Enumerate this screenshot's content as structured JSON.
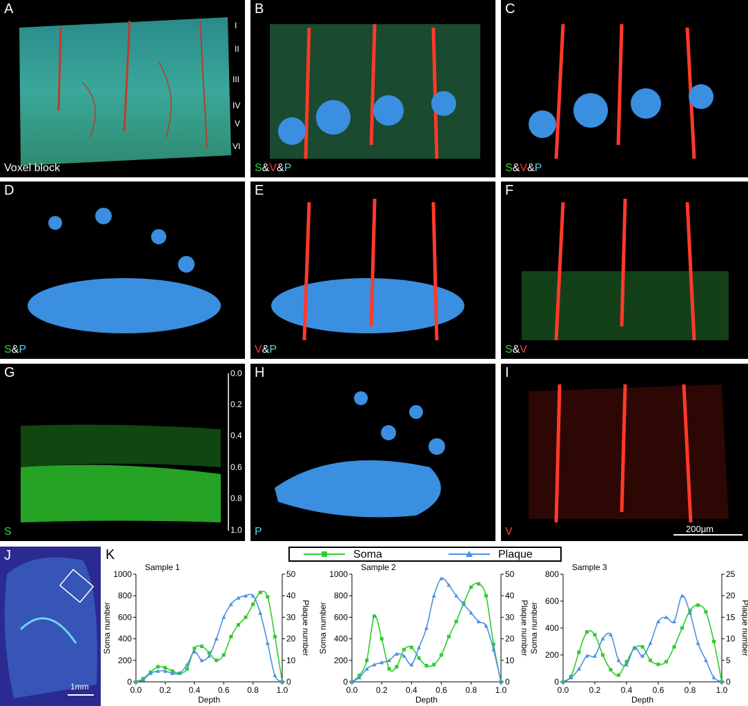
{
  "panels": {
    "A": {
      "letter": "A",
      "caption": "Voxel block",
      "layers": [
        "I",
        "II",
        "III",
        "IV",
        "V",
        "VI"
      ]
    },
    "B": {
      "letter": "B",
      "caption": [
        "S",
        "&",
        "V",
        "&",
        "P"
      ]
    },
    "C": {
      "letter": "C",
      "caption": [
        "S",
        "&",
        "V",
        "&",
        "P"
      ]
    },
    "D": {
      "letter": "D",
      "caption": [
        "S",
        "&",
        "P"
      ]
    },
    "E": {
      "letter": "E",
      "caption": [
        "V",
        "&",
        "P"
      ]
    },
    "F": {
      "letter": "F",
      "caption": [
        "S",
        "&",
        "V"
      ]
    },
    "G": {
      "letter": "G",
      "caption": "S",
      "depth_ticks": [
        "0.0",
        "0.2",
        "0.4",
        "0.6",
        "0.8",
        "1.0"
      ]
    },
    "H": {
      "letter": "H",
      "caption": "P"
    },
    "I": {
      "letter": "I",
      "caption": "V",
      "scalebar": "200μm"
    },
    "J": {
      "letter": "J",
      "scalebar": "1mm"
    },
    "K": {
      "letter": "K"
    }
  },
  "colors": {
    "soma": "#2ecc2e",
    "plaque": "#4a90e2",
    "vessel": "#ff2a1a",
    "plaque_fill": "#3a8fe0",
    "soma_fill": "#3bd43b"
  },
  "chart_data": [
    {
      "type": "line",
      "title": "Sample 1",
      "xlabel": "Depth",
      "ylabel": "Soma number",
      "y2label": "Plaque number",
      "xlim": [
        0,
        1.0
      ],
      "ylim": [
        0,
        1000
      ],
      "y2lim": [
        0,
        50
      ],
      "xticks": [
        "0.0",
        "0.2",
        "0.4",
        "0.6",
        "0.8",
        "1.0"
      ],
      "yticks": [
        "0",
        "200",
        "400",
        "600",
        "800",
        "1000"
      ],
      "y2ticks": [
        "0",
        "10",
        "20",
        "30",
        "40",
        "50"
      ],
      "series": [
        {
          "name": "Soma",
          "axis": "left",
          "x": [
            0,
            0.05,
            0.1,
            0.15,
            0.2,
            0.25,
            0.3,
            0.35,
            0.4,
            0.45,
            0.5,
            0.55,
            0.6,
            0.65,
            0.7,
            0.75,
            0.8,
            0.85,
            0.9,
            0.95,
            1.0
          ],
          "values": [
            0,
            30,
            90,
            140,
            130,
            100,
            80,
            120,
            310,
            330,
            270,
            200,
            250,
            420,
            530,
            600,
            720,
            830,
            790,
            420,
            0
          ]
        },
        {
          "name": "Plaque",
          "axis": "right",
          "x": [
            0,
            0.05,
            0.1,
            0.15,
            0.2,
            0.25,
            0.3,
            0.35,
            0.4,
            0.45,
            0.5,
            0.55,
            0.6,
            0.65,
            0.7,
            0.75,
            0.8,
            0.85,
            0.9,
            0.95,
            1.0
          ],
          "values": [
            0,
            1,
            4,
            5,
            5,
            4,
            4,
            8,
            14,
            10,
            12,
            20,
            30,
            36,
            39,
            40,
            40,
            32,
            18,
            3,
            0
          ]
        }
      ]
    },
    {
      "type": "line",
      "title": "Sample 2",
      "xlabel": "Depth",
      "ylabel": "Soma number",
      "y2label": "Plaque number",
      "xlim": [
        0,
        1.0
      ],
      "ylim": [
        0,
        1000
      ],
      "y2lim": [
        0,
        50
      ],
      "xticks": [
        "0.0",
        "0.2",
        "0.4",
        "0.6",
        "0.8",
        "1.0"
      ],
      "yticks": [
        "0",
        "200",
        "400",
        "600",
        "800",
        "1000"
      ],
      "y2ticks": [
        "0",
        "10",
        "20",
        "30",
        "40",
        "50"
      ],
      "series": [
        {
          "name": "Soma",
          "axis": "left",
          "x": [
            0,
            0.05,
            0.1,
            0.15,
            0.2,
            0.25,
            0.3,
            0.35,
            0.4,
            0.45,
            0.5,
            0.55,
            0.6,
            0.65,
            0.7,
            0.75,
            0.8,
            0.85,
            0.9,
            0.95,
            1.0
          ],
          "values": [
            0,
            60,
            200,
            610,
            400,
            120,
            140,
            300,
            320,
            220,
            150,
            160,
            250,
            420,
            560,
            730,
            880,
            910,
            800,
            350,
            0
          ]
        },
        {
          "name": "Plaque",
          "axis": "right",
          "x": [
            0,
            0.05,
            0.1,
            0.15,
            0.2,
            0.25,
            0.3,
            0.35,
            0.4,
            0.45,
            0.5,
            0.55,
            0.6,
            0.65,
            0.7,
            0.75,
            0.8,
            0.85,
            0.9,
            0.95,
            1.0
          ],
          "values": [
            0,
            2,
            6,
            8,
            9,
            10,
            13,
            12,
            8,
            16,
            25,
            40,
            48,
            45,
            40,
            36,
            32,
            28,
            26,
            15,
            0
          ]
        }
      ]
    },
    {
      "type": "line",
      "title": "Sample 3",
      "xlabel": "Depth",
      "ylabel": "Soma number",
      "y2label": "Plaque number",
      "xlim": [
        0,
        1.0
      ],
      "ylim": [
        0,
        800
      ],
      "y2lim": [
        0,
        25
      ],
      "xticks": [
        "0.0",
        "0.2",
        "0.4",
        "0.6",
        "0.8",
        "1.0"
      ],
      "yticks": [
        "0",
        "200",
        "400",
        "600",
        "800"
      ],
      "y2ticks": [
        "0",
        "5",
        "10",
        "15",
        "20",
        "25"
      ],
      "series": [
        {
          "name": "Soma",
          "axis": "left",
          "x": [
            0,
            0.05,
            0.1,
            0.15,
            0.2,
            0.25,
            0.3,
            0.35,
            0.4,
            0.45,
            0.5,
            0.55,
            0.6,
            0.65,
            0.7,
            0.75,
            0.8,
            0.85,
            0.9,
            0.95,
            1.0
          ],
          "values": [
            0,
            40,
            220,
            370,
            350,
            200,
            90,
            50,
            150,
            250,
            260,
            160,
            130,
            150,
            260,
            400,
            530,
            570,
            520,
            300,
            0
          ]
        },
        {
          "name": "Plaque",
          "axis": "right",
          "x": [
            0,
            0.05,
            0.1,
            0.15,
            0.2,
            0.25,
            0.3,
            0.35,
            0.4,
            0.45,
            0.5,
            0.55,
            0.6,
            0.65,
            0.7,
            0.75,
            0.8,
            0.85,
            0.9,
            0.95,
            1.0
          ],
          "values": [
            0,
            1,
            3,
            6,
            6,
            10,
            11,
            5,
            4,
            8,
            6,
            9,
            14,
            15,
            14,
            20,
            16,
            9,
            5,
            1,
            0
          ]
        }
      ]
    }
  ],
  "legend": {
    "soma": "Soma",
    "plaque": "Plaque"
  }
}
